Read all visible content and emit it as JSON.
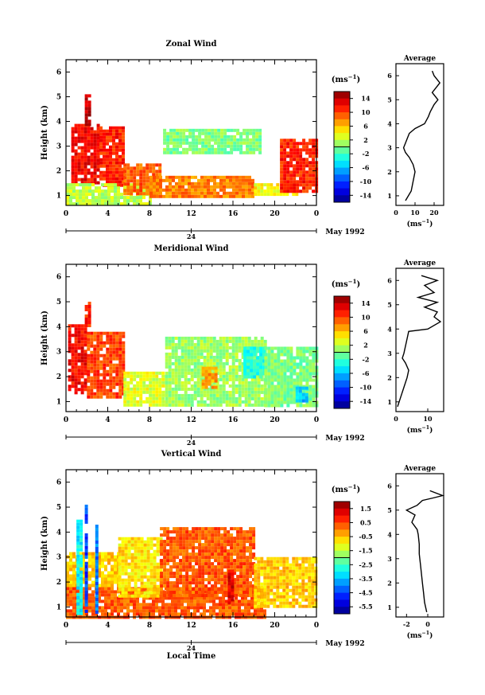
{
  "chart_data": [
    {
      "type": "heatmap",
      "title": "Zonal Wind",
      "ylabel": "Height (km)",
      "x_ticks": [
        "0",
        "4",
        "8",
        "12",
        "16",
        "20",
        "0"
      ],
      "y_ticks": [
        "1",
        "2",
        "3",
        "4",
        "5",
        "6"
      ],
      "date_tick": "24",
      "date_label": "May 1992",
      "xlim": [
        0,
        24
      ],
      "ylim": [
        0.6,
        6.5
      ],
      "colorbar": {
        "unit": "(ms⁻¹)",
        "ticks": [
          "14",
          "10",
          "6",
          "2",
          "-2",
          "-6",
          "-10",
          "-14"
        ],
        "range": [
          -16,
          16
        ]
      },
      "field_regions": [
        {
          "x": [
            0.5,
            3.2
          ],
          "y": [
            1.5,
            3.9
          ],
          "value": 12
        },
        {
          "x": [
            1.8,
            2.3
          ],
          "y": [
            3.9,
            5.1
          ],
          "value": 14
        },
        {
          "x": [
            3.2,
            5.5
          ],
          "y": [
            1.4,
            3.8
          ],
          "value": 11
        },
        {
          "x": [
            0,
            8
          ],
          "y": [
            0.7,
            1.5
          ],
          "value": 2
        },
        {
          "x": [
            5.5,
            9
          ],
          "y": [
            1.1,
            2.3
          ],
          "value": 9
        },
        {
          "x": [
            8,
            18
          ],
          "y": [
            1.0,
            1.8
          ],
          "value": 8
        },
        {
          "x": [
            9.3,
            18.5
          ],
          "y": [
            2.7,
            3.7
          ],
          "value": 0
        },
        {
          "x": [
            18,
            22
          ],
          "y": [
            1.0,
            1.5
          ],
          "value": 4
        },
        {
          "x": [
            20.5,
            24
          ],
          "y": [
            1.2,
            3.3
          ],
          "value": 11
        }
      ],
      "inset": {
        "title": "Average",
        "xlabel": "(ms⁻¹)",
        "x_ticks": [
          "0",
          "10",
          "20"
        ],
        "y_ticks": [
          "1",
          "2",
          "3",
          "4",
          "5",
          "6"
        ],
        "xlim": [
          0,
          25
        ],
        "x": [
          5,
          8,
          9,
          10,
          9,
          7,
          5,
          4,
          5,
          6,
          7,
          10,
          15,
          17,
          18,
          20,
          22,
          19,
          21,
          23,
          20,
          19
        ],
        "y": [
          0.8,
          1.2,
          1.6,
          2.0,
          2.3,
          2.6,
          2.8,
          3.0,
          3.2,
          3.4,
          3.6,
          3.8,
          4.0,
          4.3,
          4.5,
          4.8,
          5.0,
          5.3,
          5.5,
          5.7,
          6.0,
          6.2
        ]
      }
    },
    {
      "type": "heatmap",
      "title": "Meridional Wind",
      "ylabel": "Height (km)",
      "x_ticks": [
        "0",
        "4",
        "8",
        "12",
        "16",
        "20",
        "0"
      ],
      "y_ticks": [
        "1",
        "2",
        "3",
        "4",
        "5",
        "6"
      ],
      "date_tick": "24",
      "date_label": "May 1992",
      "xlim": [
        0,
        24
      ],
      "ylim": [
        0.6,
        6.5
      ],
      "colorbar": {
        "unit": "(ms⁻¹)",
        "ticks": [
          "14",
          "10",
          "6",
          "2",
          "-2",
          "-6",
          "-10",
          "-14"
        ],
        "range": [
          -16,
          16
        ]
      },
      "field_regions": [
        {
          "x": [
            0.2,
            2.0
          ],
          "y": [
            1.3,
            4.1
          ],
          "value": 12
        },
        {
          "x": [
            2.0,
            5.5
          ],
          "y": [
            1.2,
            3.8
          ],
          "value": 10
        },
        {
          "x": [
            1.8,
            2.2
          ],
          "y": [
            4.1,
            5.0
          ],
          "value": 11
        },
        {
          "x": [
            5.5,
            9.5
          ],
          "y": [
            0.9,
            2.2
          ],
          "value": 3
        },
        {
          "x": [
            9.5,
            19
          ],
          "y": [
            0.9,
            3.6
          ],
          "value": 1
        },
        {
          "x": [
            13,
            14.5
          ],
          "y": [
            1.6,
            2.4
          ],
          "value": 7
        },
        {
          "x": [
            17,
            19
          ],
          "y": [
            2.0,
            3.2
          ],
          "value": -3
        },
        {
          "x": [
            19,
            24
          ],
          "y": [
            0.9,
            3.2
          ],
          "value": 0
        },
        {
          "x": [
            22,
            23
          ],
          "y": [
            1.0,
            1.6
          ],
          "value": -6
        }
      ],
      "inset": {
        "title": "Average",
        "xlabel": "(ms⁻¹)",
        "x_ticks": [
          "0",
          "10"
        ],
        "y_ticks": [
          "1",
          "2",
          "3",
          "4",
          "5",
          "6"
        ],
        "xlim": [
          0,
          15
        ],
        "x": [
          0.5,
          1.5,
          2.5,
          3.5,
          4,
          3,
          2,
          2.5,
          3,
          3.5,
          4,
          10,
          14,
          12,
          13,
          9,
          13,
          7,
          12,
          9,
          13,
          8
        ],
        "y": [
          0.8,
          1.2,
          1.6,
          2.0,
          2.3,
          2.6,
          2.8,
          3.0,
          3.3,
          3.6,
          3.9,
          4.0,
          4.3,
          4.5,
          4.7,
          4.9,
          5.1,
          5.3,
          5.5,
          5.8,
          6.0,
          6.2
        ]
      }
    },
    {
      "type": "heatmap",
      "title": "Vertical Wind",
      "ylabel": "Height (km)",
      "xlabel": "Local Time",
      "x_ticks": [
        "0",
        "4",
        "8",
        "12",
        "16",
        "20",
        "0"
      ],
      "y_ticks": [
        "1",
        "2",
        "3",
        "4",
        "5",
        "6"
      ],
      "date_tick": "24",
      "date_label": "May 1992",
      "xlim": [
        0,
        24
      ],
      "ylim": [
        0.6,
        6.5
      ],
      "colorbar": {
        "unit": "(ms⁻¹)",
        "ticks": [
          "1.5",
          "0.5",
          "-0.5",
          "-1.5",
          "-2.5",
          "-3.5",
          "-4.5",
          "-5.5"
        ],
        "range": [
          -6,
          2
        ]
      },
      "field_regions": [
        {
          "x": [
            0,
            19
          ],
          "y": [
            0.6,
            1.8
          ],
          "value": 0.3
        },
        {
          "x": [
            0,
            5
          ],
          "y": [
            1.8,
            3.2
          ],
          "value": -0.6
        },
        {
          "x": [
            1.0,
            1.5
          ],
          "y": [
            0.8,
            4.5
          ],
          "value": -3
        },
        {
          "x": [
            1.8,
            2.1
          ],
          "y": [
            0.8,
            5.1
          ],
          "value": -4.5
        },
        {
          "x": [
            2.8,
            3.1
          ],
          "y": [
            0.8,
            4.3
          ],
          "value": -4
        },
        {
          "x": [
            5,
            9
          ],
          "y": [
            1.5,
            3.8
          ],
          "value": -0.8
        },
        {
          "x": [
            9,
            18
          ],
          "y": [
            1.5,
            4.2
          ],
          "value": 0.3
        },
        {
          "x": [
            15.5,
            16
          ],
          "y": [
            1.2,
            2.5
          ],
          "value": 1.2
        },
        {
          "x": [
            18,
            24
          ],
          "y": [
            1.0,
            3.0
          ],
          "value": -0.6
        }
      ],
      "inset": {
        "title": "Average",
        "xlabel": "(ms⁻¹)",
        "x_ticks": [
          "-2",
          "0"
        ],
        "y_ticks": [
          "1",
          "2",
          "3",
          "4",
          "5",
          "6"
        ],
        "xlim": [
          -3,
          1.5
        ],
        "x": [
          -0.1,
          -0.3,
          -0.4,
          -0.5,
          -0.6,
          -0.7,
          -0.8,
          -0.8,
          -0.9,
          -1.0,
          -1.5,
          -1.2,
          -2.0,
          -1.0,
          -0.5,
          0.5,
          1.4,
          0.2
        ],
        "y": [
          0.8,
          1.2,
          1.6,
          2.0,
          2.4,
          2.8,
          3.2,
          3.6,
          4.0,
          4.2,
          4.5,
          4.8,
          5.0,
          5.2,
          5.4,
          5.5,
          5.6,
          5.8
        ]
      }
    }
  ]
}
